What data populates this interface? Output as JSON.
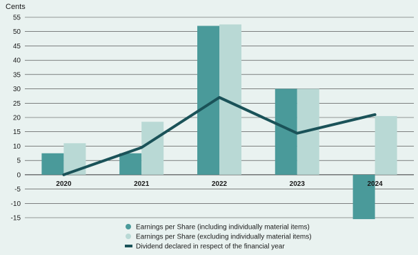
{
  "chart_data": {
    "type": "bar",
    "unit_label": "Cents",
    "categories": [
      "2020",
      "2021",
      "2022",
      "2023",
      "2024"
    ],
    "ylim": [
      -15,
      55
    ],
    "yticks": [
      55,
      50,
      45,
      40,
      35,
      30,
      25,
      20,
      15,
      10,
      5,
      0,
      -5,
      -10,
      -15
    ],
    "grid": true,
    "legend_position": "bottom-center",
    "series": [
      {
        "name": "Earnings per Share (including individually material items)",
        "kind": "bar",
        "color": "#4a9a9a",
        "values": [
          7.5,
          7.5,
          52,
          30,
          -15.5
        ]
      },
      {
        "name": "Earnings per Share (excluding individually material items)",
        "kind": "bar",
        "color": "#b9d9d5",
        "values": [
          11,
          18.5,
          52.5,
          30,
          20.5
        ]
      },
      {
        "name": "Dividend declared in respect of the financial year",
        "kind": "line",
        "color": "#1a5258",
        "values": [
          0,
          9.5,
          27,
          14.5,
          21
        ]
      }
    ]
  }
}
